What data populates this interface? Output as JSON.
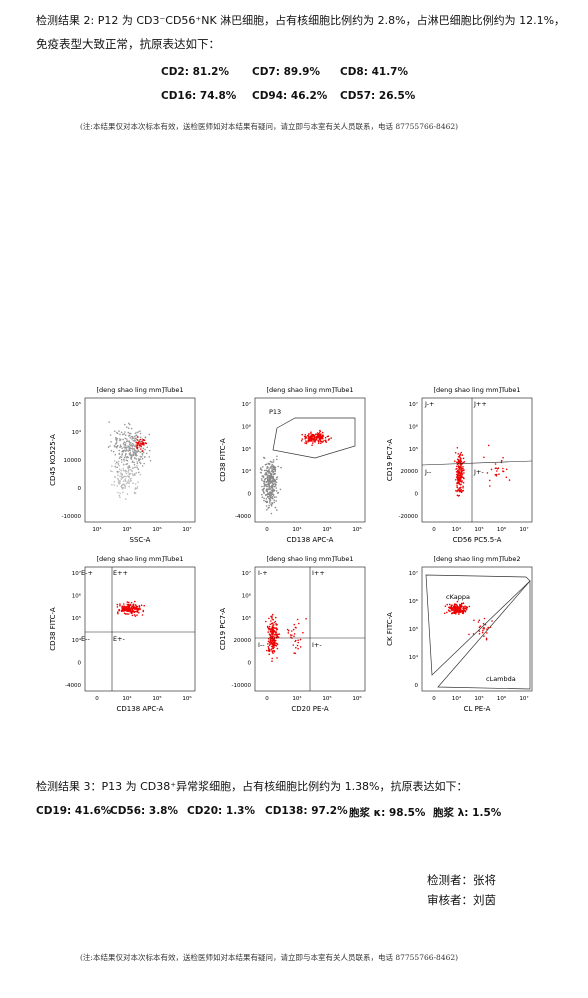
{
  "result1": {
    "line1": "检测结果 2: P12 为 CD3⁻CD56⁺NK 淋巴细胞，占有核细胞比例约为 2.8%，占淋巴细胞比例约为 12.1%，",
    "line2": "免疫表型大致正常，抗原表达如下：",
    "markers": [
      "CD2: 81.2%",
      "CD7: 89.9%",
      "CD8: 41.7%",
      "CD16: 74.8%",
      "CD94: 46.2%",
      "CD57: 26.5%"
    ],
    "note": "(注:本结果仅对本次标本有效，送检医师如对本结果有疑问，请立即与本室有关人员联系，电话 87755766-8462)"
  },
  "plots": [
    {
      "title": "[deng shao ling mm]Tube1",
      "x_label": "SSC-A",
      "y_label": "CD45 KO525-A",
      "x_ticks": [
        "10⁴",
        "10⁵",
        "10⁶",
        "10⁷"
      ],
      "y_ticks": [
        "10⁵",
        "10⁴",
        "10000",
        "0",
        "-10000"
      ],
      "gates": []
    },
    {
      "title": "[deng shao ling mm]Tube1",
      "x_label": "CD138 APC-A",
      "y_label": "CD38 FITC-A",
      "x_ticks": [
        "0",
        "10⁴",
        "10⁵",
        "10⁶"
      ],
      "y_ticks": [
        "10⁷",
        "10⁶",
        "10⁵",
        "10⁴",
        "0",
        "-4000"
      ],
      "gates": [
        "P13"
      ]
    },
    {
      "title": "[deng shao ling mm]Tube1",
      "x_label": "CD56 PC5.5-A",
      "y_label": "CD19 PC7-A",
      "x_ticks": [
        "0",
        "10⁴",
        "10⁵",
        "10⁶",
        "10⁷"
      ],
      "y_ticks": [
        "10⁷",
        "10⁶",
        "10⁵",
        "20000",
        "0",
        "-20000"
      ],
      "gates": [
        "J-+",
        "J++",
        "J--",
        "J+-"
      ]
    },
    {
      "title": "[deng shao ling mm]Tube1",
      "x_label": "CD138 APC-A",
      "y_label": "CD38 FITC-A",
      "x_ticks": [
        "0",
        "10⁴",
        "10⁵",
        "10⁶"
      ],
      "y_ticks": [
        "10⁷",
        "10⁶",
        "10⁵",
        "10⁴",
        "0",
        "-4000"
      ],
      "gates": [
        "E-+",
        "E++",
        "E--",
        "E+-"
      ]
    },
    {
      "title": "[deng shao ling mm]Tube1",
      "x_label": "CD20 PE-A",
      "y_label": "CD19 PC7-A",
      "x_ticks": [
        "0",
        "10⁴",
        "10⁵",
        "10⁶"
      ],
      "y_ticks": [
        "10⁷",
        "10⁶",
        "10⁵",
        "20000",
        "0",
        "-10000"
      ],
      "gates": [
        "I-+",
        "I++",
        "I--",
        "I+-"
      ]
    },
    {
      "title": "[deng shao ling mm]Tube2",
      "x_label": "CL PE-A",
      "y_label": "CK FITC-A",
      "x_ticks": [
        "0",
        "10⁴",
        "10⁵",
        "10⁶",
        "10⁷"
      ],
      "y_ticks": [
        "10⁷",
        "10⁶",
        "10⁵",
        "10⁴",
        "0"
      ],
      "gates": [
        "cKappa",
        "cLambda"
      ]
    }
  ],
  "result2": {
    "line1": "检测结果 3：P13 为 CD38⁺异常浆细胞，占有核细胞比例约为 1.38%，抗原表达如下：",
    "markers": [
      "CD19: 41.6%",
      "CD56: 3.8%",
      "CD20: 1.3%",
      "CD138: 97.2%",
      "胞浆 κ: 98.5%",
      "胞浆 λ: 1.5%"
    ]
  },
  "signatures": {
    "tester": "检测者：张将",
    "reviewer": "审核者：刘茵"
  },
  "footer": {
    "note": "(注:本结果仅对本次标本有效，送检医师如对本结果有疑问，请立即与本室有关人员联系，电话 87755766-8462)"
  }
}
